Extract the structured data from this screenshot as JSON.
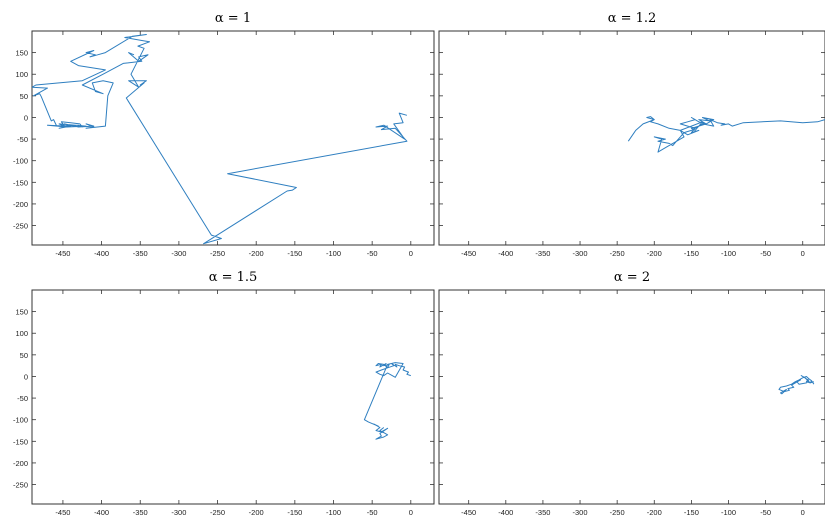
{
  "chart_data": [
    {
      "type": "line",
      "title": "α = 1",
      "xlim": [
        -490,
        30
      ],
      "ylim": [
        -295,
        200
      ],
      "xticks": [
        -450,
        -400,
        -350,
        -300,
        -250,
        -200,
        -150,
        -100,
        -50,
        0
      ],
      "yticks": [
        150,
        100,
        50,
        0,
        -50,
        -100,
        -150,
        -200,
        -250
      ],
      "color": "#2f7fc0",
      "series": [
        {
          "x": [
            -5,
            -15,
            -10,
            -22,
            -8,
            -35,
            -45,
            -30,
            -38,
            -20,
            -5,
            -237,
            -148,
            -153,
            -160,
            -268,
            -245,
            -258,
            -368,
            -345,
            -350,
            -342,
            -365,
            -352,
            -362,
            -345,
            -353,
            -338,
            -348,
            -370,
            -342,
            -360,
            -395,
            -405,
            -415,
            -408,
            -420,
            -410,
            -440,
            -430,
            -395,
            -425,
            -485,
            -490,
            -470,
            -488,
            -480,
            -478,
            -465,
            -462,
            -458,
            -430,
            -425,
            -428,
            -440,
            -452,
            -448,
            -455,
            -420,
            -445,
            -470,
            -445,
            -455,
            -440,
            -448,
            -430,
            -410,
            -420,
            -410,
            -420,
            -395,
            -392,
            -385,
            -398,
            -412,
            -408,
            -398,
            -425,
            -398,
            -372,
            -348,
            -352,
            -340,
            -352,
            -365,
            -358
          ],
          "y": [
            5,
            10,
            -12,
            -15,
            -50,
            -18,
            -22,
            -20,
            -28,
            -25,
            -55,
            -130,
            -162,
            -168,
            -170,
            -292,
            -280,
            -272,
            45,
            80,
            75,
            85,
            85,
            70,
            100,
            160,
            165,
            175,
            178,
            185,
            192,
            188,
            150,
            145,
            140,
            145,
            150,
            155,
            130,
            120,
            110,
            85,
            75,
            70,
            68,
            50,
            55,
            48,
            -8,
            -5,
            -20,
            -18,
            -22,
            -15,
            -12,
            -10,
            -20,
            -15,
            -20,
            -22,
            -18,
            -20,
            -25,
            -20,
            -15,
            -22,
            -20,
            -15,
            -22,
            -25,
            -20,
            50,
            80,
            85,
            80,
            60,
            55,
            75,
            100,
            125,
            130,
            140,
            145,
            130,
            150,
            145
          ]
        }
      ]
    },
    {
      "type": "line",
      "title": "α = 1.2",
      "xlim": [
        -490,
        30
      ],
      "ylim": [
        -295,
        200
      ],
      "xticks": [
        -450,
        -400,
        -350,
        -300,
        -250,
        -200,
        -150,
        -100,
        -50,
        0
      ],
      "yticks": [],
      "color": "#2f7fc0",
      "series": [
        {
          "x": [
            30,
            20,
            0,
            -30,
            -80,
            -95,
            -100,
            -110,
            -105,
            -115,
            -125,
            -120,
            -135,
            -145,
            -150,
            -140,
            -155,
            -165,
            -160,
            -175,
            -185,
            -195,
            -190,
            -200,
            -185,
            -195,
            -180,
            -175,
            -170,
            -165,
            -160,
            -150,
            -145,
            -155,
            -165,
            -155,
            -145,
            -150,
            -140,
            -130,
            -140,
            -125,
            -135,
            -120,
            -130,
            -140,
            -150,
            -145,
            -135,
            -150,
            -165,
            -180,
            -195,
            -205,
            -200,
            -210,
            -205,
            -200,
            -215,
            -225,
            -235
          ],
          "y": [
            -5,
            -10,
            -12,
            -8,
            -12,
            -20,
            -15,
            -18,
            -15,
            -12,
            -5,
            -20,
            -15,
            -25,
            -35,
            -30,
            -40,
            -30,
            -45,
            -60,
            -70,
            -80,
            -50,
            -45,
            -50,
            -55,
            -60,
            -65,
            -55,
            -45,
            -35,
            -30,
            -25,
            -20,
            -15,
            -10,
            -5,
            0,
            -10,
            -15,
            -5,
            -8,
            0,
            -5,
            -15,
            -20,
            -25,
            -30,
            -10,
            -20,
            -30,
            -25,
            -15,
            -10,
            -5,
            0,
            2,
            -5,
            -15,
            -30,
            -55
          ]
        }
      ]
    },
    {
      "type": "line",
      "title": "α = 1.5",
      "xlim": [
        -490,
        30
      ],
      "ylim": [
        -295,
        200
      ],
      "xticks": [
        -450,
        -400,
        -350,
        -300,
        -250,
        -200,
        -150,
        -100,
        -50,
        0
      ],
      "yticks": [
        150,
        100,
        50,
        0,
        -50,
        -100,
        -150,
        -200,
        -250
      ],
      "color": "#2f7fc0",
      "series": [
        {
          "x": [
            0,
            -5,
            -3,
            -10,
            -8,
            -15,
            -20,
            -18,
            -25,
            -22,
            -30,
            -28,
            -35,
            -32,
            -40,
            -38,
            -45,
            -42,
            -35,
            -30,
            -38,
            -45,
            -40,
            -35,
            -30,
            -25,
            -20,
            -10,
            -20,
            -30,
            -60,
            -55,
            -42,
            -48,
            -40,
            -45,
            -35,
            -38,
            -30,
            -40,
            -38,
            -45,
            -35,
            -30,
            -40,
            -35
          ],
          "y": [
            2,
            5,
            10,
            15,
            22,
            25,
            28,
            22,
            30,
            25,
            20,
            28,
            25,
            30,
            22,
            28,
            25,
            30,
            28,
            20,
            15,
            10,
            5,
            2,
            8,
            3,
            -2,
            30,
            32,
            28,
            -100,
            -105,
            -115,
            -110,
            -118,
            -125,
            -130,
            -128,
            -120,
            -132,
            -138,
            -145,
            -140,
            -135,
            -125,
            -118
          ]
        }
      ]
    },
    {
      "type": "line",
      "title": "α = 2",
      "xlim": [
        -490,
        30
      ],
      "ylim": [
        -295,
        200
      ],
      "xticks": [
        -450,
        -400,
        -350,
        -300,
        -250,
        -200,
        -150,
        -100,
        -50,
        0
      ],
      "yticks": [],
      "color": "#2f7fc0",
      "series": [
        {
          "x": [
            15,
            12,
            8,
            5,
            10,
            6,
            2,
            -2,
            3,
            8,
            5,
            -5,
            -8,
            -3,
            -10,
            -15,
            -12,
            -20,
            -18,
            -25,
            -22,
            -30,
            -28,
            -25,
            -32,
            -30,
            -22,
            -15,
            -10,
            -5,
            0,
            5,
            8,
            12,
            10,
            15
          ],
          "y": [
            -18,
            -10,
            -5,
            -12,
            -15,
            -8,
            -2,
            2,
            -3,
            -10,
            -15,
            -18,
            -12,
            -8,
            -15,
            -20,
            -25,
            -28,
            -32,
            -35,
            -30,
            -38,
            -40,
            -35,
            -30,
            -25,
            -22,
            -18,
            -12,
            -8,
            -3,
            0,
            -5,
            -10,
            -15,
            -12
          ]
        }
      ]
    }
  ]
}
